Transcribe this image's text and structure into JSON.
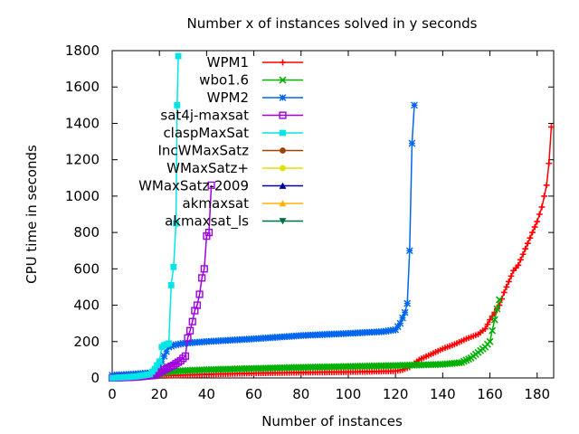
{
  "chart_data": {
    "type": "line",
    "title": "Number x of instances solved in y seconds",
    "xlabel": "Number of instances",
    "ylabel": "CPU time in seconds",
    "xlim": [
      0,
      187
    ],
    "ylim": [
      0,
      1800
    ],
    "xticks": [
      0,
      20,
      40,
      60,
      80,
      100,
      120,
      140,
      160,
      180
    ],
    "yticks": [
      0,
      200,
      400,
      600,
      800,
      1000,
      1200,
      1400,
      1600,
      1800
    ],
    "grid": false,
    "legend_position": "top-right",
    "series": [
      {
        "name": "WPM1",
        "color": "#ff0000",
        "marker": "plus",
        "points": [
          [
            0,
            0
          ],
          [
            10,
            5
          ],
          [
            20,
            12
          ],
          [
            40,
            20
          ],
          [
            60,
            26
          ],
          [
            80,
            30
          ],
          [
            100,
            33
          ],
          [
            110,
            35
          ],
          [
            120,
            38
          ],
          [
            123,
            45
          ],
          [
            126,
            60
          ],
          [
            128,
            80
          ],
          [
            130,
            100
          ],
          [
            135,
            130
          ],
          [
            140,
            160
          ],
          [
            145,
            185
          ],
          [
            150,
            215
          ],
          [
            155,
            240
          ],
          [
            158,
            270
          ],
          [
            160,
            320
          ],
          [
            162,
            360
          ],
          [
            164,
            400
          ],
          [
            166,
            470
          ],
          [
            168,
            530
          ],
          [
            170,
            590
          ],
          [
            172,
            620
          ],
          [
            174,
            680
          ],
          [
            176,
            740
          ],
          [
            178,
            800
          ],
          [
            180,
            860
          ],
          [
            182,
            940
          ],
          [
            184,
            1060
          ],
          [
            185,
            1180
          ],
          [
            186,
            1380
          ]
        ]
      },
      {
        "name": "wbo1.6",
        "color": "#00b000",
        "marker": "cross",
        "points": [
          [
            0,
            0
          ],
          [
            10,
            5
          ],
          [
            18,
            12
          ],
          [
            22,
            30
          ],
          [
            30,
            40
          ],
          [
            40,
            45
          ],
          [
            60,
            52
          ],
          [
            80,
            58
          ],
          [
            100,
            63
          ],
          [
            120,
            68
          ],
          [
            140,
            75
          ],
          [
            148,
            85
          ],
          [
            152,
            110
          ],
          [
            155,
            140
          ],
          [
            158,
            170
          ],
          [
            160,
            200
          ],
          [
            161,
            260
          ],
          [
            162,
            320
          ],
          [
            163,
            380
          ],
          [
            164,
            430
          ]
        ]
      },
      {
        "name": "WPM2",
        "color": "#0066ee",
        "marker": "star",
        "points": [
          [
            0,
            15
          ],
          [
            10,
            22
          ],
          [
            18,
            30
          ],
          [
            20,
            60
          ],
          [
            22,
            120
          ],
          [
            24,
            170
          ],
          [
            26,
            180
          ],
          [
            30,
            190
          ],
          [
            40,
            200
          ],
          [
            60,
            215
          ],
          [
            80,
            233
          ],
          [
            100,
            245
          ],
          [
            115,
            255
          ],
          [
            120,
            265
          ],
          [
            122,
            300
          ],
          [
            124,
            360
          ],
          [
            125,
            410
          ],
          [
            126,
            700
          ],
          [
            127,
            1290
          ],
          [
            128,
            1500
          ]
        ]
      },
      {
        "name": "sat4j-maxsat",
        "color": "#a000dd",
        "marker": "square",
        "points": [
          [
            0,
            0
          ],
          [
            10,
            5
          ],
          [
            18,
            15
          ],
          [
            22,
            45
          ],
          [
            26,
            70
          ],
          [
            29,
            95
          ],
          [
            31,
            120
          ],
          [
            32,
            220
          ],
          [
            33,
            260
          ],
          [
            34,
            310
          ],
          [
            35,
            370
          ],
          [
            36,
            400
          ],
          [
            37,
            460
          ],
          [
            38,
            550
          ],
          [
            39,
            600
          ],
          [
            40,
            780
          ],
          [
            41,
            800
          ],
          [
            42,
            1060
          ]
        ]
      },
      {
        "name": "claspMaxSat",
        "color": "#00e6e6",
        "marker": "filled-square",
        "points": [
          [
            0,
            0
          ],
          [
            10,
            8
          ],
          [
            16,
            20
          ],
          [
            18,
            50
          ],
          [
            20,
            90
          ],
          [
            21,
            170
          ],
          [
            22,
            180
          ],
          [
            24,
            190
          ],
          [
            25,
            510
          ],
          [
            26,
            610
          ],
          [
            27,
            850
          ],
          [
            27.5,
            1500
          ],
          [
            28,
            1770
          ]
        ]
      },
      {
        "name": "IncWMaxSatz",
        "color": "#a04000",
        "marker": "filled-circle",
        "points": []
      },
      {
        "name": "WMaxSatz+",
        "color": "#e0e000",
        "marker": "filled-circle",
        "points": []
      },
      {
        "name": "WMaxSatz-2009",
        "color": "#0000a0",
        "marker": "filled-triangle",
        "points": []
      },
      {
        "name": "akmaxsat",
        "color": "#ffb000",
        "marker": "filled-triangle",
        "points": []
      },
      {
        "name": "akmaxsat_ls",
        "color": "#007040",
        "marker": "filled-triangle-down",
        "points": []
      }
    ]
  }
}
